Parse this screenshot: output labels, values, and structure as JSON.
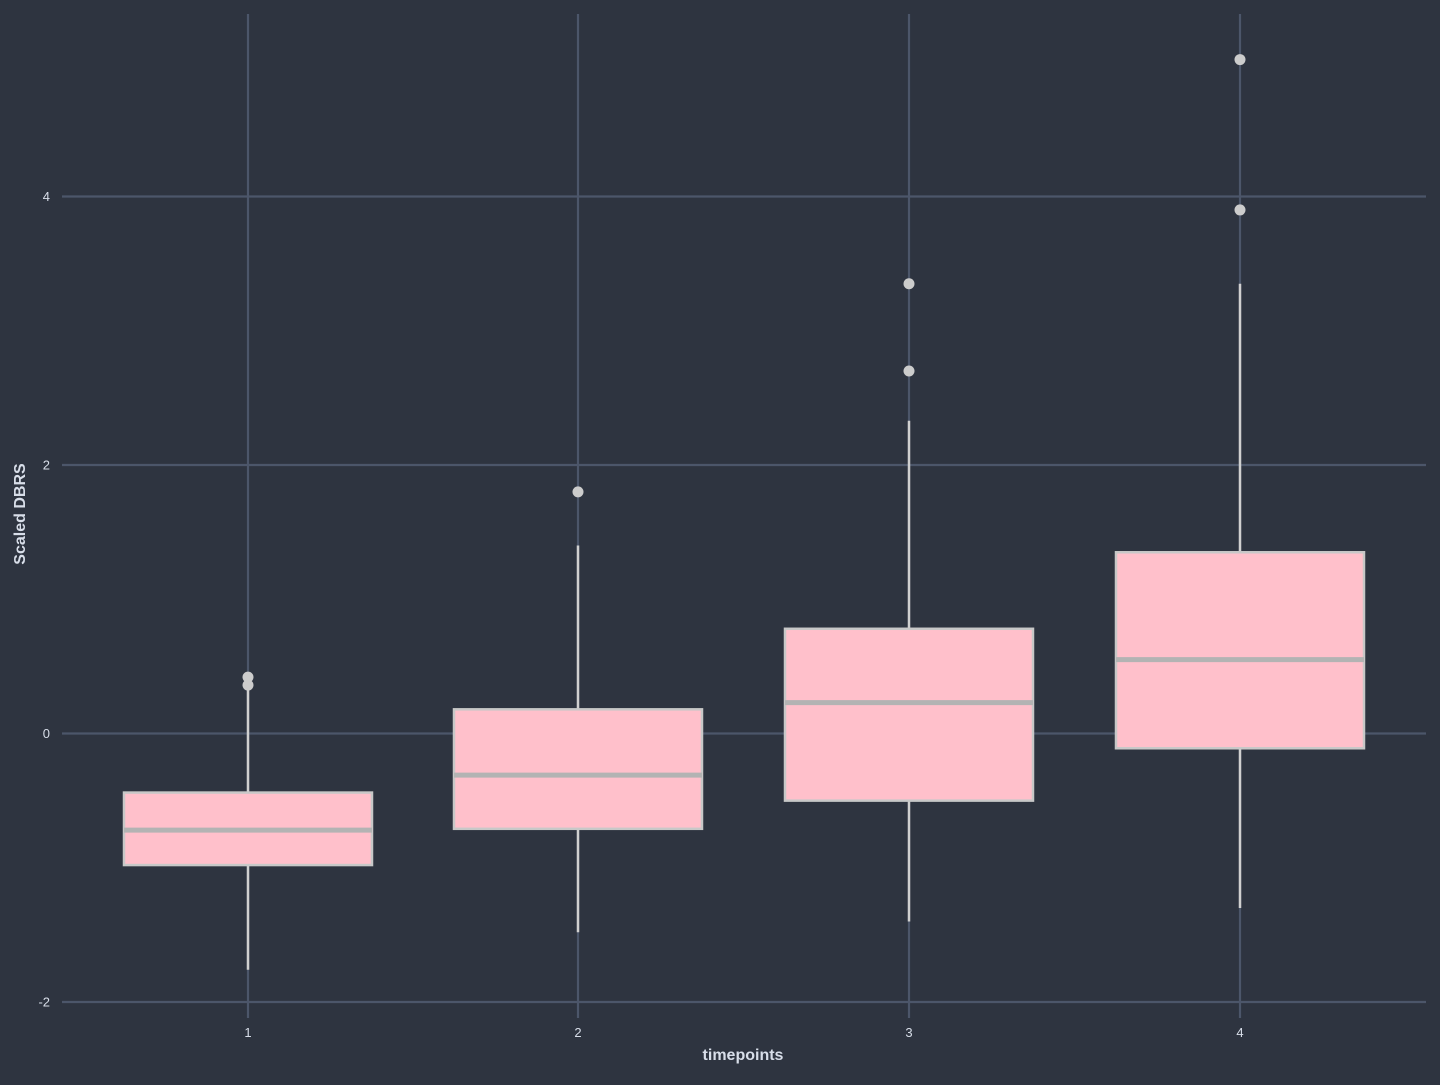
{
  "chart_data": {
    "type": "boxplot",
    "title": "",
    "xlabel": "timepoints",
    "ylabel": "Scaled DBRS",
    "categories": [
      "1",
      "2",
      "3",
      "4"
    ],
    "ylim": [
      -2.1,
      5.4
    ],
    "yticks": [
      -2,
      0,
      2,
      4
    ],
    "grid": true,
    "legend": "none",
    "boxes": [
      {
        "category": "1",
        "whisker_low": -1.76,
        "q1": -0.98,
        "median": -0.72,
        "q3": -0.44,
        "whisker_high": 0.36,
        "outliers": [
          0.36,
          0.42
        ]
      },
      {
        "category": "2",
        "whisker_low": -1.48,
        "q1": -0.71,
        "median": -0.31,
        "q3": 0.18,
        "whisker_high": 1.4,
        "outliers": [
          1.8
        ]
      },
      {
        "category": "3",
        "whisker_low": -1.4,
        "q1": -0.5,
        "median": 0.23,
        "q3": 0.78,
        "whisker_high": 2.33,
        "outliers": [
          2.7,
          3.35
        ]
      },
      {
        "category": "4",
        "whisker_low": -1.3,
        "q1": -0.11,
        "median": 0.55,
        "q3": 1.35,
        "whisker_high": 3.35,
        "outliers": [
          3.9,
          5.02
        ]
      }
    ],
    "colors": {
      "background": "#2e3440",
      "grid": "#4c566a",
      "box_fill": "#ffc0cb",
      "box_outline": "#c8c8c8",
      "median": "#b3b3b3",
      "whisker": "#d0d0d0",
      "outlier": "#cccccc",
      "text": "#d8dee9"
    }
  }
}
